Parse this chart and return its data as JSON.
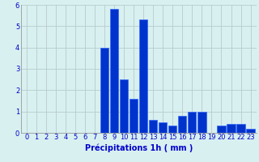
{
  "hours": [
    0,
    1,
    2,
    3,
    4,
    5,
    6,
    7,
    8,
    9,
    10,
    11,
    12,
    13,
    14,
    15,
    16,
    17,
    18,
    19,
    20,
    21,
    22,
    23
  ],
  "values": [
    0,
    0,
    0,
    0,
    0,
    0,
    0,
    0,
    4.0,
    5.8,
    2.5,
    1.6,
    5.3,
    0.6,
    0.5,
    0.35,
    0.8,
    1.0,
    1.0,
    0,
    0.35,
    0.4,
    0.4,
    0.2
  ],
  "bar_color": "#0033cc",
  "bar_edge_color": "#3366ff",
  "background_color": "#d8f0f0",
  "grid_color": "#b8cccc",
  "text_color": "#0000cc",
  "xlabel": "Précipitations 1h ( mm )",
  "ylim": [
    0,
    6
  ],
  "yticks": [
    0,
    1,
    2,
    3,
    4,
    5,
    6
  ],
  "xticks": [
    0,
    1,
    2,
    3,
    4,
    5,
    6,
    7,
    8,
    9,
    10,
    11,
    12,
    13,
    14,
    15,
    16,
    17,
    18,
    19,
    20,
    21,
    22,
    23
  ],
  "xlabel_fontsize": 7.0,
  "tick_fontsize": 6.0
}
